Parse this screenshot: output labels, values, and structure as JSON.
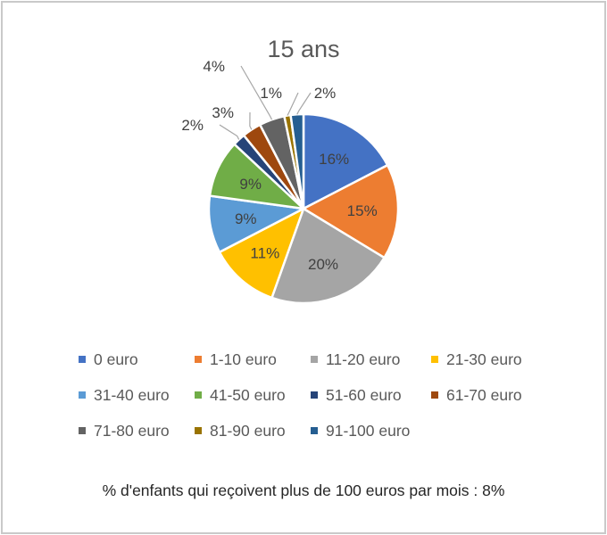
{
  "chart_data": {
    "type": "pie",
    "title": "15 ans",
    "categories": [
      "0 euro",
      "1-10 euro",
      "11-20 euro",
      "21-30 euro",
      "31-40 euro",
      "41-50 euro",
      "51-60 euro",
      "61-70 euro",
      "71-80 euro",
      "81-90 euro",
      "91-100 euro"
    ],
    "values": [
      16,
      15,
      20,
      11,
      9,
      9,
      2,
      3,
      4,
      1,
      2
    ],
    "labels": [
      "16%",
      "15%",
      "20%",
      "11%",
      "9%",
      "9%",
      "2%",
      "3%",
      "4%",
      "1%",
      "2%"
    ],
    "colors": [
      "#4472C4",
      "#ED7D31",
      "#A5A5A5",
      "#FFC000",
      "#5B9BD5",
      "#70AD47",
      "#264478",
      "#9E480E",
      "#636363",
      "#997300",
      "#255E91"
    ],
    "legend_position": "bottom",
    "note": "% d'enfants qui reçoivent plus de 100 euros par mois : 8%"
  }
}
